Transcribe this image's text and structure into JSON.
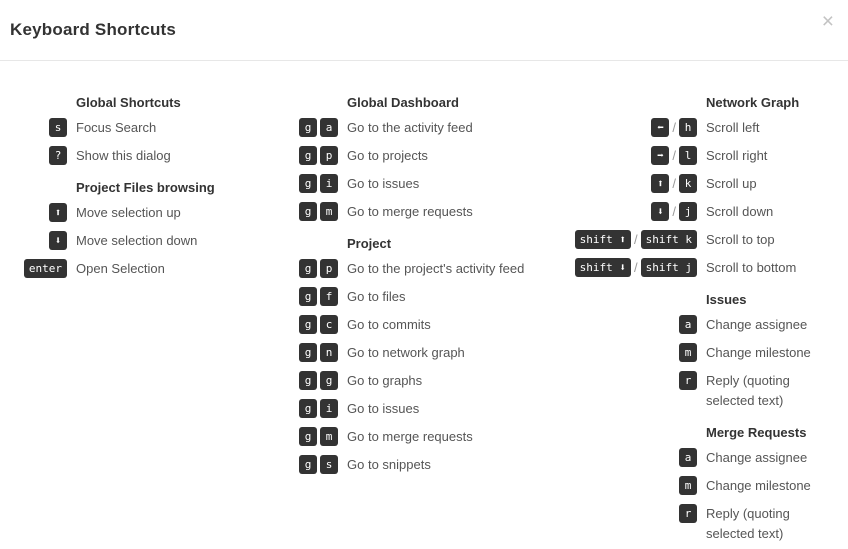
{
  "dialog": {
    "title": "Keyboard Shortcuts",
    "close_label": "×"
  },
  "colors": {
    "key_background": "#333333",
    "key_text": "#ffffff",
    "heading_text": "#333333",
    "description_text": "#555555",
    "separator_text": "#999999",
    "header_border": "#e7e7e7",
    "close_icon": "#c3c3c3"
  },
  "columns": [
    {
      "name": "left",
      "sections": [
        {
          "title": "Global Shortcuts",
          "rows": [
            {
              "caps": [
                "s"
              ],
              "desc": "Focus Search"
            },
            {
              "caps": [
                "?"
              ],
              "desc": "Show this dialog"
            }
          ]
        },
        {
          "title": "Project Files browsing",
          "rows": [
            {
              "caps": [
                "⬆"
              ],
              "desc": "Move selection up"
            },
            {
              "caps": [
                "⬇"
              ],
              "desc": "Move selection down"
            },
            {
              "caps": [
                "enter"
              ],
              "desc": "Open Selection"
            }
          ]
        }
      ]
    },
    {
      "name": "middle",
      "sections": [
        {
          "title": "Global Dashboard",
          "rows": [
            {
              "caps": [
                "g",
                "a"
              ],
              "desc": "Go to the activity feed"
            },
            {
              "caps": [
                "g",
                "p"
              ],
              "desc": "Go to projects"
            },
            {
              "caps": [
                "g",
                "i"
              ],
              "desc": "Go to issues"
            },
            {
              "caps": [
                "g",
                "m"
              ],
              "desc": "Go to merge requests"
            }
          ]
        },
        {
          "title": "Project",
          "rows": [
            {
              "caps": [
                "g",
                "p"
              ],
              "desc": "Go to the project's activity feed"
            },
            {
              "caps": [
                "g",
                "f"
              ],
              "desc": "Go to files"
            },
            {
              "caps": [
                "g",
                "c"
              ],
              "desc": "Go to commits"
            },
            {
              "caps": [
                "g",
                "n"
              ],
              "desc": "Go to network graph"
            },
            {
              "caps": [
                "g",
                "g"
              ],
              "desc": "Go to graphs"
            },
            {
              "caps": [
                "g",
                "i"
              ],
              "desc": "Go to issues"
            },
            {
              "caps": [
                "g",
                "m"
              ],
              "desc": "Go to merge requests"
            },
            {
              "caps": [
                "g",
                "s"
              ],
              "desc": "Go to snippets"
            }
          ]
        }
      ]
    },
    {
      "name": "right",
      "sections": [
        {
          "title": "Network Graph",
          "rows": [
            {
              "caps": [
                "⬅",
                "h"
              ],
              "sep": "/",
              "desc": "Scroll left"
            },
            {
              "caps": [
                "➡",
                "l"
              ],
              "sep": "/",
              "desc": "Scroll right"
            },
            {
              "caps": [
                "⬆",
                "k"
              ],
              "sep": "/",
              "desc": "Scroll up"
            },
            {
              "caps": [
                "⬇",
                "j"
              ],
              "sep": "/",
              "desc": "Scroll down"
            },
            {
              "caps": [
                "shift ⬆",
                "shift k"
              ],
              "sep": "/",
              "desc": "Scroll to top"
            },
            {
              "caps": [
                "shift ⬇",
                "shift j"
              ],
              "sep": "/",
              "desc": "Scroll to bottom"
            }
          ]
        },
        {
          "title": "Issues",
          "rows": [
            {
              "caps": [
                "a"
              ],
              "desc": "Change assignee"
            },
            {
              "caps": [
                "m"
              ],
              "desc": "Change milestone"
            },
            {
              "caps": [
                "r"
              ],
              "desc": "Reply (quoting selected text)"
            }
          ]
        },
        {
          "title": "Merge Requests",
          "rows": [
            {
              "caps": [
                "a"
              ],
              "desc": "Change assignee"
            },
            {
              "caps": [
                "m"
              ],
              "desc": "Change milestone"
            },
            {
              "caps": [
                "r"
              ],
              "desc": "Reply (quoting selected text)"
            }
          ]
        }
      ]
    }
  ]
}
